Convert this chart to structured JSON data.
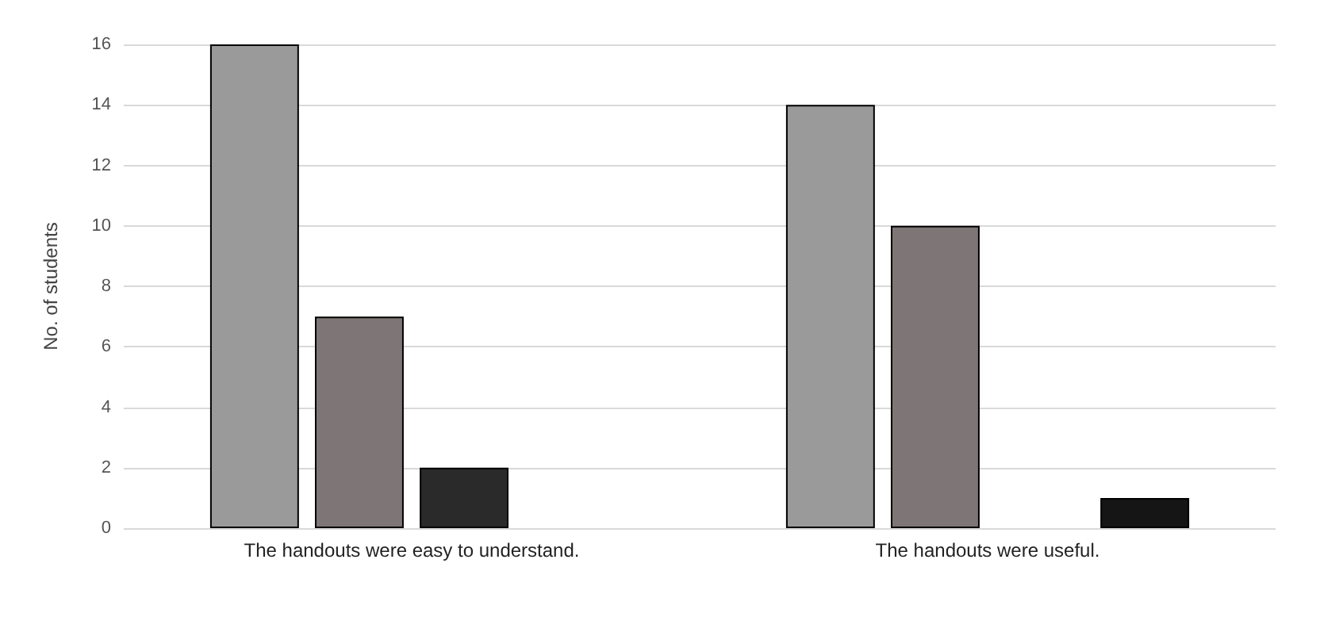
{
  "chart_data": {
    "type": "bar",
    "ylabel": "No. of students",
    "categories": [
      "The handouts were easy to understand.",
      "The handouts were useful."
    ],
    "series": [
      {
        "color": "#9a9a9a",
        "values": [
          16,
          14
        ]
      },
      {
        "color": "#7e7676",
        "values": [
          7,
          10
        ]
      },
      {
        "color": "#2a2a2a",
        "values": [
          2,
          0
        ]
      },
      {
        "color": "#151515",
        "values": [
          0,
          1
        ]
      }
    ],
    "ylim": [
      0,
      16
    ],
    "yticks": [
      0,
      2,
      4,
      6,
      8,
      10,
      12,
      14,
      16
    ],
    "grid": "y"
  }
}
